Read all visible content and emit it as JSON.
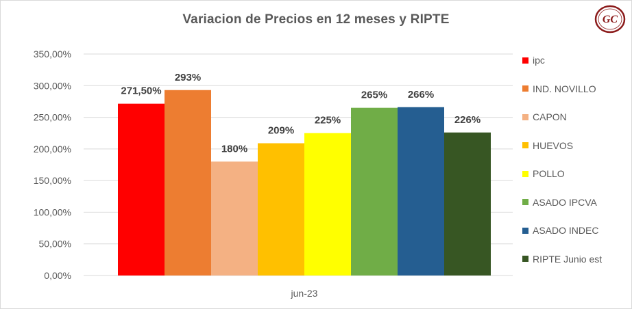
{
  "chart_data": {
    "type": "bar",
    "title": "Variacion de Precios en 12 meses y RIPTE",
    "categories": [
      "jun-23"
    ],
    "ylim": [
      0,
      350
    ],
    "ytick_labels": [
      "0,00%",
      "50,00%",
      "100,00%",
      "150,00%",
      "200,00%",
      "250,00%",
      "300,00%",
      "350,00%"
    ],
    "gridlines": true,
    "legend_position": "right",
    "series": [
      {
        "name": "ipc",
        "values": [
          271.5
        ],
        "label": "271,50%",
        "color": "#ff0000"
      },
      {
        "name": "IND. NOVILLO",
        "values": [
          293
        ],
        "label": "293%",
        "color": "#ed7d31"
      },
      {
        "name": "CAPON",
        "values": [
          180
        ],
        "label": "180%",
        "color": "#f4b183"
      },
      {
        "name": "HUEVOS",
        "values": [
          209
        ],
        "label": "209%",
        "color": "#ffc000"
      },
      {
        "name": "POLLO",
        "values": [
          225
        ],
        "label": "225%",
        "color": "#ffff00"
      },
      {
        "name": "ASADO IPCVA",
        "values": [
          265
        ],
        "label": "265%",
        "color": "#70ad47"
      },
      {
        "name": "ASADO INDEC",
        "values": [
          266
        ],
        "label": "266%",
        "color": "#255e91"
      },
      {
        "name": "RIPTE Junio est",
        "values": [
          226
        ],
        "label": "226%",
        "color": "#375623"
      }
    ]
  },
  "logo": {
    "text": "GC",
    "color": "#8b1a1a"
  }
}
